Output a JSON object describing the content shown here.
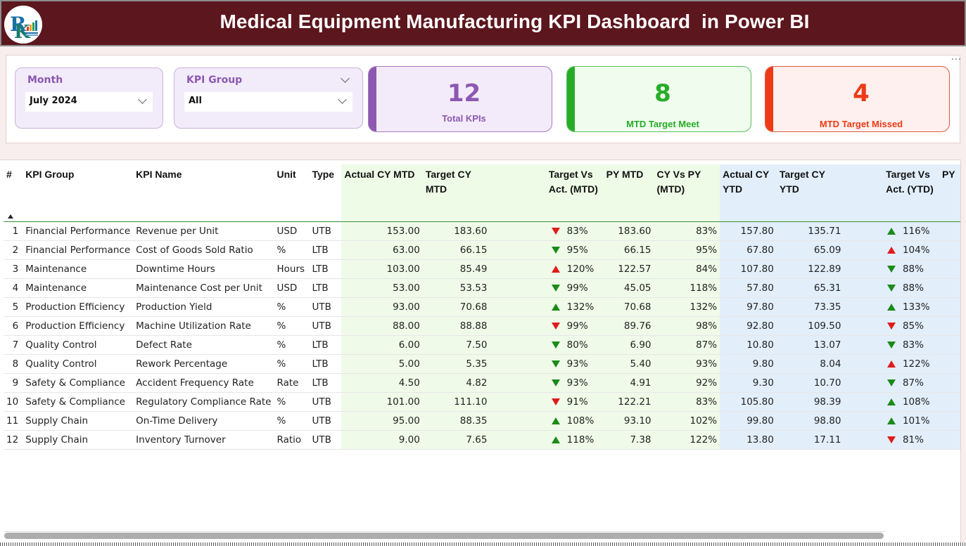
{
  "header": {
    "title": "Medical Equipment Manufacturing KPI Dashboard  in Power BI",
    "logo_icon": "company-logo"
  },
  "slicers": {
    "month": {
      "label": "Month",
      "value": "July 2024"
    },
    "kpi_group": {
      "label": "KPI Group",
      "value": "All"
    }
  },
  "cards": {
    "total": {
      "value": "12",
      "label": "Total KPIs",
      "color": "#8c58b0"
    },
    "meet": {
      "value": "8",
      "label": "MTD Target Meet",
      "color": "#27ac27"
    },
    "missed": {
      "value": "4",
      "label": "MTD Target Missed",
      "color": "#ef3a16"
    }
  },
  "more_options": "...",
  "table": {
    "columns": [
      "#",
      "KPI Group",
      "KPI Name",
      "Unit",
      "Type",
      "Actual CY MTD",
      "Target CY MTD",
      "",
      "Target Vs Act. (MTD)",
      "PY MTD",
      "CY Vs PY (MTD)",
      "Actual CY YTD",
      "Target CY YTD",
      "",
      "Target Vs Act. (YTD)",
      "PY"
    ],
    "sort": "ascending",
    "colors": {
      "up_good": "#1a8a1a",
      "bad": "#e01b1b"
    },
    "rows": [
      {
        "n": "1",
        "group": "Financial Performance",
        "name": "Revenue per Unit",
        "unit": "USD",
        "type": "UTB",
        "act_mtd": "153.00",
        "tgt_mtd": "183.60",
        "mtd_icon": "down",
        "mtd_color": "red",
        "mtd_pct": "83%",
        "py_mtd": "183.60",
        "cy_vs_py": "83%",
        "act_ytd": "157.80",
        "tgt_ytd": "135.71",
        "ytd_icon": "up",
        "ytd_color": "green",
        "ytd_pct": "116%"
      },
      {
        "n": "2",
        "group": "Financial Performance",
        "name": "Cost of Goods Sold Ratio",
        "unit": "%",
        "type": "LTB",
        "act_mtd": "63.00",
        "tgt_mtd": "66.15",
        "mtd_icon": "down",
        "mtd_color": "green",
        "mtd_pct": "95%",
        "py_mtd": "66.15",
        "cy_vs_py": "95%",
        "act_ytd": "67.80",
        "tgt_ytd": "65.09",
        "ytd_icon": "up",
        "ytd_color": "red",
        "ytd_pct": "104%"
      },
      {
        "n": "3",
        "group": "Maintenance",
        "name": "Downtime Hours",
        "unit": "Hours",
        "type": "LTB",
        "act_mtd": "103.00",
        "tgt_mtd": "85.49",
        "mtd_icon": "up",
        "mtd_color": "red",
        "mtd_pct": "120%",
        "py_mtd": "122.57",
        "cy_vs_py": "84%",
        "act_ytd": "107.80",
        "tgt_ytd": "122.89",
        "ytd_icon": "down",
        "ytd_color": "green",
        "ytd_pct": "88%"
      },
      {
        "n": "4",
        "group": "Maintenance",
        "name": "Maintenance Cost per Unit",
        "unit": "USD",
        "type": "LTB",
        "act_mtd": "53.00",
        "tgt_mtd": "53.53",
        "mtd_icon": "down",
        "mtd_color": "green",
        "mtd_pct": "99%",
        "py_mtd": "45.05",
        "cy_vs_py": "118%",
        "act_ytd": "57.80",
        "tgt_ytd": "65.31",
        "ytd_icon": "down",
        "ytd_color": "green",
        "ytd_pct": "88%"
      },
      {
        "n": "5",
        "group": "Production Efficiency",
        "name": "Production Yield",
        "unit": "%",
        "type": "UTB",
        "act_mtd": "93.00",
        "tgt_mtd": "70.68",
        "mtd_icon": "up",
        "mtd_color": "green",
        "mtd_pct": "132%",
        "py_mtd": "70.68",
        "cy_vs_py": "132%",
        "act_ytd": "97.80",
        "tgt_ytd": "73.35",
        "ytd_icon": "up",
        "ytd_color": "green",
        "ytd_pct": "133%"
      },
      {
        "n": "6",
        "group": "Production Efficiency",
        "name": "Machine Utilization Rate",
        "unit": "%",
        "type": "UTB",
        "act_mtd": "88.00",
        "tgt_mtd": "88.88",
        "mtd_icon": "down",
        "mtd_color": "red",
        "mtd_pct": "99%",
        "py_mtd": "89.76",
        "cy_vs_py": "98%",
        "act_ytd": "92.80",
        "tgt_ytd": "109.50",
        "ytd_icon": "down",
        "ytd_color": "red",
        "ytd_pct": "85%"
      },
      {
        "n": "7",
        "group": "Quality Control",
        "name": "Defect Rate",
        "unit": "%",
        "type": "LTB",
        "act_mtd": "6.00",
        "tgt_mtd": "7.50",
        "mtd_icon": "down",
        "mtd_color": "green",
        "mtd_pct": "80%",
        "py_mtd": "6.90",
        "cy_vs_py": "87%",
        "act_ytd": "10.80",
        "tgt_ytd": "13.07",
        "ytd_icon": "down",
        "ytd_color": "green",
        "ytd_pct": "83%"
      },
      {
        "n": "8",
        "group": "Quality Control",
        "name": "Rework Percentage",
        "unit": "%",
        "type": "LTB",
        "act_mtd": "5.00",
        "tgt_mtd": "5.35",
        "mtd_icon": "down",
        "mtd_color": "green",
        "mtd_pct": "93%",
        "py_mtd": "5.40",
        "cy_vs_py": "93%",
        "act_ytd": "9.80",
        "tgt_ytd": "8.04",
        "ytd_icon": "up",
        "ytd_color": "red",
        "ytd_pct": "122%"
      },
      {
        "n": "9",
        "group": "Safety & Compliance",
        "name": "Accident Frequency Rate",
        "unit": "Rate",
        "type": "LTB",
        "act_mtd": "4.50",
        "tgt_mtd": "4.82",
        "mtd_icon": "down",
        "mtd_color": "green",
        "mtd_pct": "93%",
        "py_mtd": "4.91",
        "cy_vs_py": "92%",
        "act_ytd": "9.30",
        "tgt_ytd": "10.70",
        "ytd_icon": "down",
        "ytd_color": "green",
        "ytd_pct": "87%"
      },
      {
        "n": "10",
        "group": "Safety & Compliance",
        "name": "Regulatory Compliance Rate",
        "unit": "%",
        "type": "UTB",
        "act_mtd": "101.00",
        "tgt_mtd": "111.10",
        "mtd_icon": "down",
        "mtd_color": "red",
        "mtd_pct": "91%",
        "py_mtd": "122.21",
        "cy_vs_py": "83%",
        "act_ytd": "105.80",
        "tgt_ytd": "98.39",
        "ytd_icon": "up",
        "ytd_color": "green",
        "ytd_pct": "108%"
      },
      {
        "n": "11",
        "group": "Supply Chain",
        "name": "On-Time Delivery",
        "unit": "%",
        "type": "UTB",
        "act_mtd": "95.00",
        "tgt_mtd": "88.35",
        "mtd_icon": "up",
        "mtd_color": "green",
        "mtd_pct": "108%",
        "py_mtd": "93.10",
        "cy_vs_py": "102%",
        "act_ytd": "99.80",
        "tgt_ytd": "98.80",
        "ytd_icon": "up",
        "ytd_color": "green",
        "ytd_pct": "101%"
      },
      {
        "n": "12",
        "group": "Supply Chain",
        "name": "Inventory Turnover",
        "unit": "Ratio",
        "type": "UTB",
        "act_mtd": "9.00",
        "tgt_mtd": "7.65",
        "mtd_icon": "up",
        "mtd_color": "green",
        "mtd_pct": "118%",
        "py_mtd": "7.38",
        "cy_vs_py": "122%",
        "act_ytd": "13.80",
        "tgt_ytd": "17.11",
        "ytd_icon": "down",
        "ytd_color": "red",
        "ytd_pct": "81%"
      }
    ]
  }
}
